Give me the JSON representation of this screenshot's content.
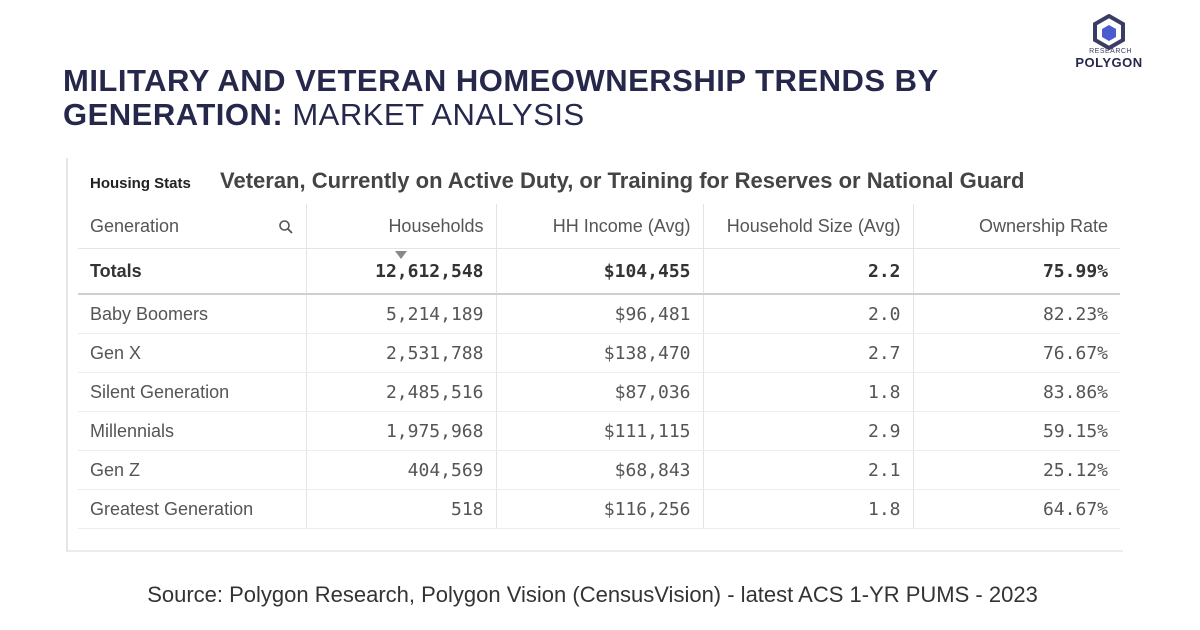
{
  "title": {
    "bold": "MILITARY AND VETERAN HOMEOWNERSHIP TRENDS BY GENERATION:",
    "light": "MARKET ANALYSIS"
  },
  "logo": {
    "small": "RESEARCH",
    "name": "POLYGON"
  },
  "panel": {
    "label": "Housing Stats",
    "subtitle": "Veteran, Currently on Active Duty, or Training for Reserves or National Guard"
  },
  "table": {
    "headers": [
      "Generation",
      "Households",
      "HH Income (Avg)",
      "Household Size (Avg)",
      "Ownership Rate"
    ],
    "totals": [
      "Totals",
      "12,612,548",
      "$104,455",
      "2.2",
      "75.99%"
    ],
    "rows": [
      [
        "Baby Boomers",
        "5,214,189",
        "$96,481",
        "2.0",
        "82.23%"
      ],
      [
        "Gen X",
        "2,531,788",
        "$138,470",
        "2.7",
        "76.67%"
      ],
      [
        "Silent Generation",
        "2,485,516",
        "$87,036",
        "1.8",
        "83.86%"
      ],
      [
        "Millennials",
        "1,975,968",
        "$111,115",
        "2.9",
        "59.15%"
      ],
      [
        "Gen Z",
        "404,569",
        "$68,843",
        "2.1",
        "25.12%"
      ],
      [
        "Greatest Generation",
        "518",
        "$116,256",
        "1.8",
        "64.67%"
      ]
    ]
  },
  "source": "Source: Polygon Research, Polygon Vision (CensusVision) - latest ACS 1-YR PUMS - 2023"
}
